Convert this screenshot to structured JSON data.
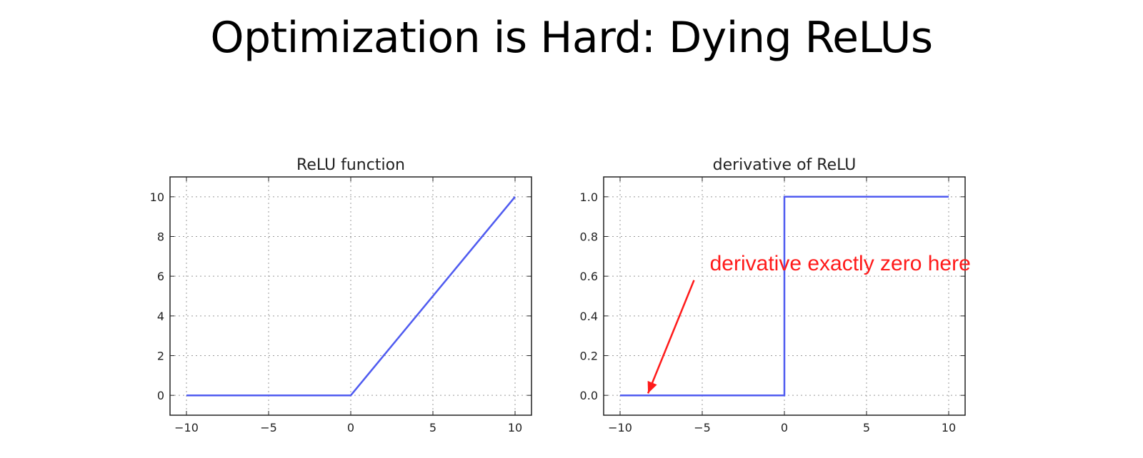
{
  "slide": {
    "title": "Optimization is Hard: Dying ReLUs"
  },
  "colors": {
    "line": "#4f5bf0",
    "annotation": "#ff1a1a",
    "grid": "#9a9a9a",
    "axis": "#222222"
  },
  "chart_data": [
    {
      "type": "line",
      "title": "ReLU function",
      "xlabel": "",
      "ylabel": "",
      "xlim": [
        -11,
        11
      ],
      "ylim": [
        -1,
        11
      ],
      "xticks": [
        -10,
        -5,
        0,
        5,
        10
      ],
      "xtick_labels": [
        "−10",
        "−5",
        "0",
        "5",
        "10"
      ],
      "yticks": [
        0,
        2,
        4,
        6,
        8,
        10
      ],
      "ytick_labels": [
        "0",
        "2",
        "4",
        "6",
        "8",
        "10"
      ],
      "grid": true,
      "series": [
        {
          "x": [
            -10,
            0,
            10
          ],
          "y": [
            0,
            0,
            10
          ]
        }
      ]
    },
    {
      "type": "line",
      "title": "derivative of ReLU",
      "xlabel": "",
      "ylabel": "",
      "xlim": [
        -11,
        11
      ],
      "ylim": [
        -0.1,
        1.1
      ],
      "xticks": [
        -10,
        -5,
        0,
        5,
        10
      ],
      "xtick_labels": [
        "−10",
        "−5",
        "0",
        "5",
        "10"
      ],
      "yticks": [
        0.0,
        0.2,
        0.4,
        0.6,
        0.8,
        1.0
      ],
      "ytick_labels": [
        "0.0",
        "0.2",
        "0.4",
        "0.6",
        "0.8",
        "1.0"
      ],
      "grid": true,
      "series": [
        {
          "x": [
            -10,
            0,
            0,
            10
          ],
          "y": [
            0,
            0,
            1,
            1
          ]
        }
      ],
      "annotations": [
        {
          "text": "derivative exactly zero here",
          "x": 3.4,
          "y": 0.63,
          "arrow_from": [
            -5.5,
            0.58
          ],
          "arrow_to": [
            -8.3,
            0.01
          ]
        }
      ]
    }
  ]
}
